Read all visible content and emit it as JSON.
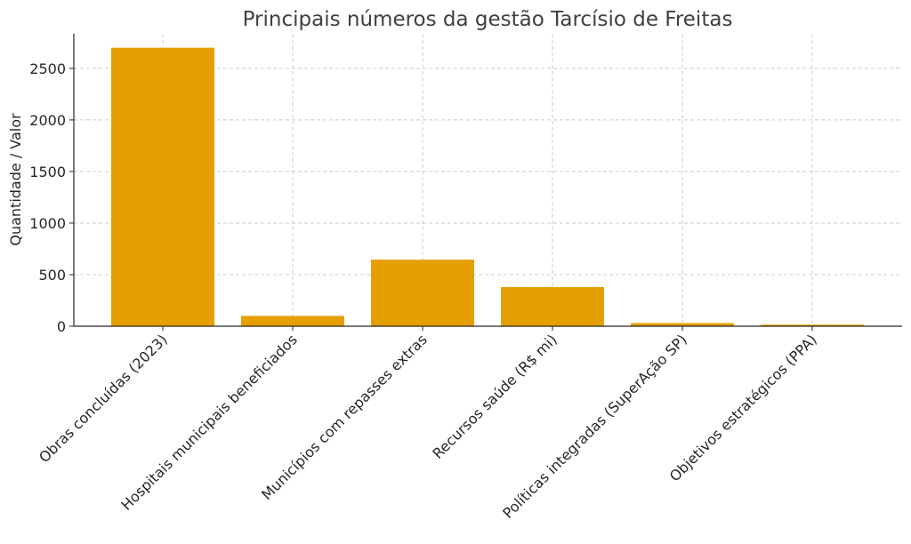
{
  "chart_data": {
    "type": "bar",
    "title": "Principais números da gestão Tarcísio de Freitas",
    "xlabel": "",
    "ylabel": "Quantidade / Valor",
    "categories": [
      "Obras concluídas (2023)",
      "Hospitais municipais beneficiados",
      "Municípios com repasses extras",
      "Recursos saúde (R$ mi)",
      "Políticas integradas (SuperAção SP)",
      "Objetivos estratégicos (PPA)"
    ],
    "values": [
      2700,
      100,
      645,
      380,
      30,
      15
    ],
    "ylim": [
      0,
      2835
    ],
    "yticks": [
      0,
      500,
      1000,
      1500,
      2000,
      2500
    ],
    "grid": true,
    "bar_color": "#E69F00"
  }
}
